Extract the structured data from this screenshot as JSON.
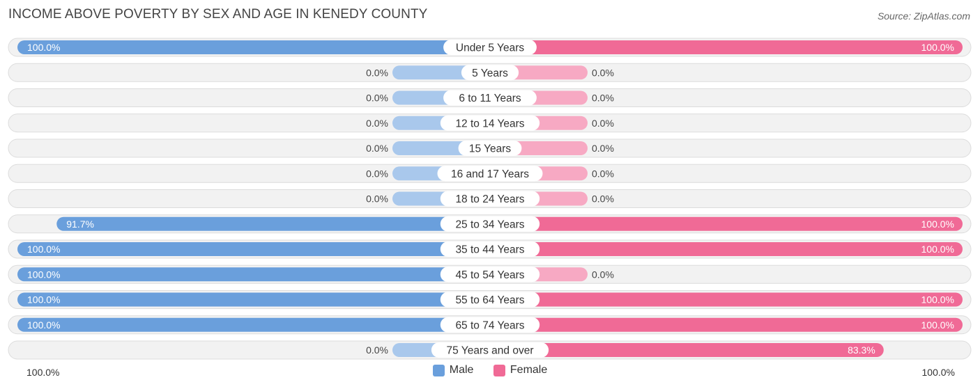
{
  "title": "INCOME ABOVE POVERTY BY SEX AND AGE IN KENEDY COUNTY",
  "source": "Source: ZipAtlas.com",
  "colors": {
    "male": "#6a9fdc",
    "male_light": "#a9c8ec",
    "female": "#f06a96",
    "female_light": "#f7a9c3",
    "row_bg": "#f2f2f2",
    "row_border": "#dcdcdc"
  },
  "chart_data": {
    "type": "bar",
    "orientation": "horizontal-diverging",
    "title": "INCOME ABOVE POVERTY BY SEX AND AGE IN KENEDY COUNTY",
    "categories": [
      "Under 5 Years",
      "5 Years",
      "6 to 11 Years",
      "12 to 14 Years",
      "15 Years",
      "16 and 17 Years",
      "18 to 24 Years",
      "25 to 34 Years",
      "35 to 44 Years",
      "45 to 54 Years",
      "55 to 64 Years",
      "65 to 74 Years",
      "75 Years and over"
    ],
    "series": [
      {
        "name": "Male",
        "values": [
          100.0,
          0.0,
          0.0,
          0.0,
          0.0,
          0.0,
          0.0,
          91.7,
          100.0,
          100.0,
          100.0,
          100.0,
          0.0
        ]
      },
      {
        "name": "Female",
        "values": [
          100.0,
          0.0,
          0.0,
          0.0,
          0.0,
          0.0,
          0.0,
          100.0,
          100.0,
          0.0,
          100.0,
          100.0,
          83.3
        ]
      }
    ],
    "value_labels": {
      "male": [
        "100.0%",
        "0.0%",
        "0.0%",
        "0.0%",
        "0.0%",
        "0.0%",
        "0.0%",
        "91.7%",
        "100.0%",
        "100.0%",
        "100.0%",
        "100.0%",
        "0.0%"
      ],
      "female": [
        "100.0%",
        "0.0%",
        "0.0%",
        "0.0%",
        "0.0%",
        "0.0%",
        "0.0%",
        "100.0%",
        "100.0%",
        "0.0%",
        "100.0%",
        "100.0%",
        "83.3%"
      ]
    },
    "xlim": [
      0,
      100
    ],
    "axis_left_label": "100.0%",
    "axis_right_label": "100.0%",
    "legend": [
      "Male",
      "Female"
    ],
    "legend_position": "bottom-center"
  }
}
